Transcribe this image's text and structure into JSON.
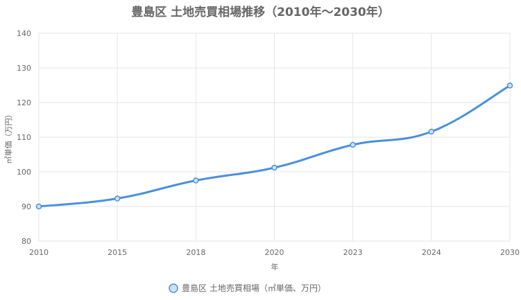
{
  "chart_data": {
    "type": "line",
    "title": "豊島区 土地売買相場推移（2010年〜2030年）",
    "xlabel": "年",
    "ylabel": "㎡単価（万円）",
    "categories": [
      "2010",
      "2015",
      "2018",
      "2020",
      "2023",
      "2024",
      "2030"
    ],
    "series": [
      {
        "name": "豊島区 土地売買相場（㎡単価、万円）",
        "values": [
          90.0,
          92.3,
          97.5,
          101.2,
          107.8,
          111.6,
          124.9
        ],
        "color": "#4a8fdc"
      }
    ],
    "ylim": [
      80,
      140
    ],
    "yticks": [
      80,
      90,
      100,
      110,
      120,
      130,
      140
    ],
    "grid": true,
    "legend": "bottom"
  }
}
